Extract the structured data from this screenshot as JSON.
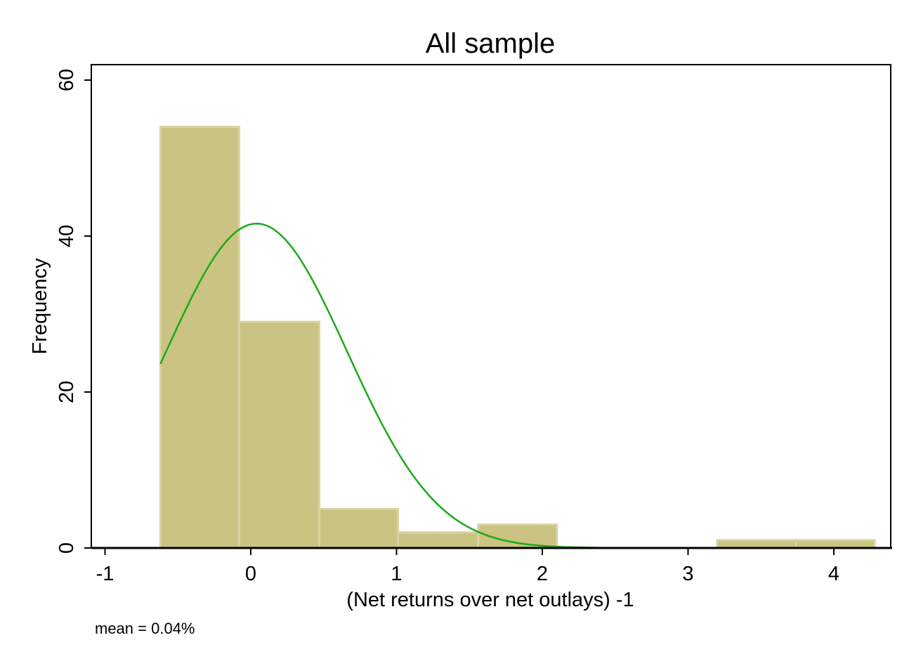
{
  "chart_data": {
    "type": "bar",
    "subtype": "histogram",
    "title": "All sample",
    "xlabel": "(Net returns over net outlays) -1",
    "ylabel": "Frequency",
    "note": "mean = 0.04%",
    "xlim": [
      -1,
      4.4
    ],
    "ylim": [
      0,
      62
    ],
    "xticks": [
      -1,
      0,
      1,
      2,
      3,
      4
    ],
    "xtick_labels": [
      "-1",
      "0",
      "1",
      "2",
      "3",
      "4"
    ],
    "yticks": [
      0,
      20,
      40,
      60
    ],
    "ytick_labels": [
      "0",
      "20",
      "40",
      "60"
    ],
    "bins": [
      {
        "x0": -0.62,
        "x1": -0.08,
        "count": 54
      },
      {
        "x0": -0.08,
        "x1": 0.47,
        "count": 29
      },
      {
        "x0": 0.47,
        "x1": 1.01,
        "count": 5
      },
      {
        "x0": 1.01,
        "x1": 1.56,
        "count": 2
      },
      {
        "x0": 1.56,
        "x1": 2.1,
        "count": 3
      },
      {
        "x0": 2.1,
        "x1": 2.65,
        "count": 0
      },
      {
        "x0": 2.65,
        "x1": 3.2,
        "count": 0
      },
      {
        "x0": 3.2,
        "x1": 3.74,
        "count": 1
      },
      {
        "x0": 3.74,
        "x1": 4.28,
        "count": 1
      }
    ],
    "normal_curve": {
      "x_start": -0.62,
      "x_end": 4.28,
      "mean": 0.04,
      "sd": 0.62,
      "scale": 41.6
    },
    "grid": false,
    "legend": "none",
    "colors": {
      "bar_fill": "#cbc382",
      "bar_edge": "#d9d3a0",
      "curve": "#1aaa1a",
      "axis": "#000000"
    }
  }
}
